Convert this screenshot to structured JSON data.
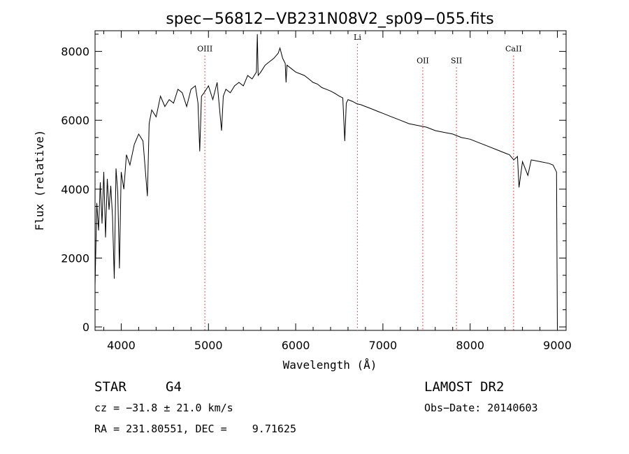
{
  "chart_data": {
    "type": "line",
    "title": "spec−56812−VB231N08V2_sp09−055.fits",
    "xlabel": "Wavelength (Å)",
    "ylabel": "Flux (relative)",
    "xlim": [
      3700,
      9100
    ],
    "ylim": [
      -100,
      8600
    ],
    "xticks": [
      4000,
      5000,
      6000,
      7000,
      8000,
      9000
    ],
    "yticks": [
      0,
      2000,
      4000,
      6000,
      8000
    ],
    "grid": false,
    "lines": [
      {
        "label": "OIII",
        "wavelength": 4959,
        "label_flux": 8000
      },
      {
        "label": "Li",
        "wavelength": 6708,
        "label_flux": 8340
      },
      {
        "label": "OII",
        "wavelength": 7457,
        "label_flux": 7660
      },
      {
        "label": "SII",
        "wavelength": 7843,
        "label_flux": 7660
      },
      {
        "label": "CaII",
        "wavelength": 8498,
        "label_flux": 8000
      }
    ],
    "series": [
      {
        "name": "spectrum",
        "x": [
          3700,
          3720,
          3740,
          3760,
          3780,
          3800,
          3820,
          3840,
          3860,
          3880,
          3900,
          3920,
          3940,
          3960,
          3980,
          4000,
          4030,
          4060,
          4100,
          4150,
          4200,
          4250,
          4300,
          4320,
          4350,
          4400,
          4450,
          4500,
          4550,
          4600,
          4650,
          4700,
          4750,
          4800,
          4850,
          4880,
          4900,
          4920,
          4950,
          5000,
          5050,
          5100,
          5150,
          5170,
          5200,
          5250,
          5300,
          5350,
          5400,
          5450,
          5500,
          5550,
          5560,
          5570,
          5600,
          5650,
          5700,
          5750,
          5800,
          5820,
          5850,
          5880,
          5890,
          5900,
          5950,
          6000,
          6050,
          6100,
          6150,
          6200,
          6250,
          6300,
          6350,
          6400,
          6450,
          6500,
          6540,
          6563,
          6580,
          6600,
          6650,
          6700,
          6750,
          6800,
          6850,
          6900,
          6950,
          7000,
          7100,
          7200,
          7300,
          7400,
          7500,
          7600,
          7700,
          7800,
          7900,
          8000,
          8100,
          8200,
          8300,
          8400,
          8450,
          8500,
          8542,
          8560,
          8600,
          8662,
          8700,
          8800,
          8900,
          8950,
          8990,
          9000
        ],
        "y": [
          1200,
          3600,
          2800,
          4200,
          3000,
          4500,
          2600,
          4300,
          3400,
          4100,
          3200,
          1400,
          4600,
          3900,
          1700,
          4500,
          4000,
          5000,
          4700,
          5300,
          5600,
          5400,
          3800,
          5900,
          6300,
          6100,
          6700,
          6400,
          6600,
          6500,
          6900,
          6800,
          6400,
          6900,
          7000,
          6500,
          5100,
          6700,
          6800,
          7000,
          6600,
          7100,
          5700,
          6700,
          6900,
          6800,
          7000,
          7100,
          7000,
          7300,
          7200,
          7400,
          8500,
          7300,
          7400,
          7600,
          7700,
          7800,
          7950,
          8100,
          7800,
          7650,
          7100,
          7600,
          7500,
          7400,
          7350,
          7300,
          7200,
          7100,
          7050,
          6950,
          6900,
          6850,
          6780,
          6700,
          6650,
          5400,
          6500,
          6600,
          6550,
          6480,
          6450,
          6400,
          6350,
          6300,
          6250,
          6200,
          6100,
          6000,
          5900,
          5850,
          5800,
          5700,
          5650,
          5600,
          5500,
          5450,
          5350,
          5250,
          5150,
          5050,
          5000,
          4850,
          4950,
          4050,
          4800,
          4400,
          4850,
          4800,
          4750,
          4700,
          4500,
          0
        ]
      }
    ]
  },
  "info": {
    "object_class": "STAR",
    "subclass": "G4",
    "survey": "LAMOST DR2",
    "redshift": "cz = −31.8 ± 21.0 km/s",
    "obs_date": "Obs−Date: 20140603",
    "coords": "RA = 231.80551, DEC =    9.71625"
  }
}
